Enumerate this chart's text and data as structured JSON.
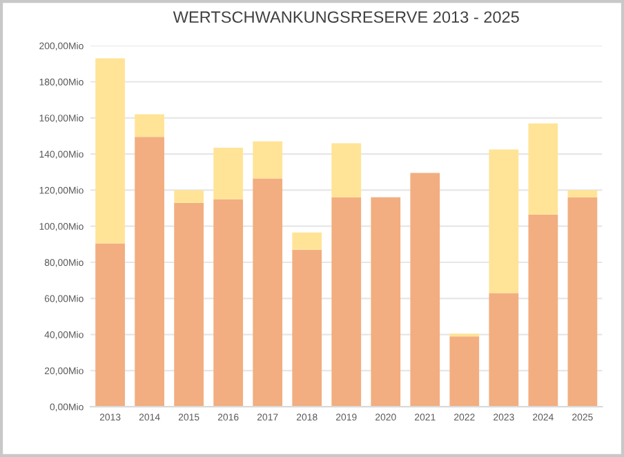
{
  "chart_data": {
    "type": "bar",
    "title": "WERTSCHWANKUNGSRESERVE 2013 - 2025",
    "stacked": true,
    "grid": "y",
    "categories": [
      "2013",
      "2014",
      "2015",
      "2016",
      "2017",
      "2018",
      "2019",
      "2020",
      "2021",
      "2022",
      "2023",
      "2024",
      "2025"
    ],
    "series": [
      {
        "color": "#f2ae80",
        "values": [
          90.5,
          149.5,
          113,
          115,
          126.5,
          87,
          116,
          116,
          129.5,
          39,
          63,
          106.5,
          116
        ]
      },
      {
        "color": "#ffe497",
        "values": [
          102.5,
          12.5,
          7,
          28.5,
          20.5,
          9.5,
          30,
          0,
          0,
          1.5,
          79.5,
          50.5,
          4
        ]
      }
    ],
    "ylim": [
      0,
      200
    ],
    "yticks": [
      {
        "value": 0,
        "label": "0,00Mio"
      },
      {
        "value": 20,
        "label": "20,00Mio"
      },
      {
        "value": 40,
        "label": "40,00Mio"
      },
      {
        "value": 60,
        "label": "60,00Mio"
      },
      {
        "value": 80,
        "label": "80,00Mio"
      },
      {
        "value": 100,
        "label": "100,00Mio"
      },
      {
        "value": 120,
        "label": "120,00Mio"
      },
      {
        "value": 140,
        "label": "140,00Mio"
      },
      {
        "value": 160,
        "label": "160,00Mio"
      },
      {
        "value": 180,
        "label": "180,00Mio"
      },
      {
        "value": 200,
        "label": "200,00Mio"
      }
    ]
  }
}
